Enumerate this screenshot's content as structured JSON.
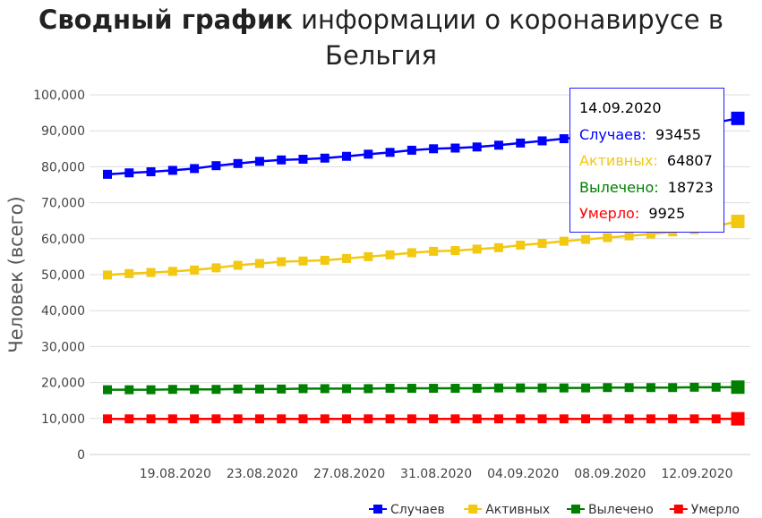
{
  "title_bold": "Сводный график",
  "title_rest": " информации о коронавирусе в Бельгия",
  "chart_data": {
    "type": "line",
    "title": "Сводный график информации о коронавирусе в Бельгия",
    "ylabel": "Человек (всего)",
    "xlabel": "",
    "ylim": [
      0,
      100000
    ],
    "y_ticks": [
      "0",
      "10,000",
      "20,000",
      "30,000",
      "40,000",
      "50,000",
      "60,000",
      "70,000",
      "80,000",
      "90,000",
      "100,000"
    ],
    "x": [
      "16.08.2020",
      "17.08.2020",
      "18.08.2020",
      "19.08.2020",
      "20.08.2020",
      "21.08.2020",
      "22.08.2020",
      "23.08.2020",
      "24.08.2020",
      "25.08.2020",
      "26.08.2020",
      "27.08.2020",
      "28.08.2020",
      "29.08.2020",
      "30.08.2020",
      "31.08.2020",
      "01.09.2020",
      "02.09.2020",
      "03.09.2020",
      "04.09.2020",
      "05.09.2020",
      "06.09.2020",
      "07.09.2020",
      "08.09.2020",
      "09.09.2020",
      "10.09.2020",
      "11.09.2020",
      "12.09.2020",
      "13.09.2020",
      "14.09.2020"
    ],
    "x_tick_labels": [
      "19.08.2020",
      "23.08.2020",
      "27.08.2020",
      "31.08.2020",
      "04.09.2020",
      "08.09.2020",
      "12.09.2020"
    ],
    "x_tick_indices": [
      3,
      7,
      11,
      15,
      19,
      23,
      27
    ],
    "grid": true,
    "legend_position": "bottom-right",
    "series": [
      {
        "name": "Случаев",
        "color": "#0000ff",
        "values": [
          77900,
          78300,
          78600,
          79000,
          79500,
          80300,
          80900,
          81500,
          81900,
          82100,
          82400,
          82900,
          83500,
          84000,
          84600,
          85000,
          85200,
          85500,
          86000,
          86600,
          87200,
          87800,
          88400,
          89100,
          89600,
          90200,
          90900,
          91400,
          92300,
          93455
        ]
      },
      {
        "name": "Активных",
        "color": "#f2c811",
        "values": [
          49900,
          50300,
          50600,
          50900,
          51300,
          51900,
          52600,
          53100,
          53600,
          53800,
          54000,
          54500,
          55000,
          55500,
          56100,
          56500,
          56700,
          57100,
          57500,
          58200,
          58700,
          59300,
          59800,
          60300,
          60800,
          61300,
          61900,
          62500,
          63500,
          64807
        ]
      },
      {
        "name": "Вылечено",
        "color": "#008000",
        "values": [
          18000,
          18000,
          18000,
          18100,
          18100,
          18100,
          18200,
          18200,
          18200,
          18300,
          18300,
          18300,
          18300,
          18400,
          18400,
          18400,
          18400,
          18400,
          18500,
          18500,
          18500,
          18500,
          18500,
          18600,
          18600,
          18600,
          18600,
          18700,
          18700,
          18723
        ]
      },
      {
        "name": "Умерло",
        "color": "#ff0000",
        "values": [
          9900,
          9900,
          9900,
          9900,
          9900,
          9900,
          9900,
          9900,
          9900,
          9900,
          9900,
          9900,
          9900,
          9900,
          9900,
          9900,
          9900,
          9900,
          9900,
          9900,
          9900,
          9900,
          9900,
          9900,
          9900,
          9900,
          9900,
          9900,
          9900,
          9925
        ]
      }
    ]
  },
  "tooltip": {
    "date": "14.09.2020",
    "rows": [
      {
        "label": "Случаев:",
        "value": "93455",
        "color": "#0000ff"
      },
      {
        "label": "Активных:",
        "value": "64807",
        "color": "#f2c811"
      },
      {
        "label": "Вылечено:",
        "value": "18723",
        "color": "#008000"
      },
      {
        "label": "Умерло:",
        "value": "9925",
        "color": "#ff0000"
      }
    ]
  }
}
